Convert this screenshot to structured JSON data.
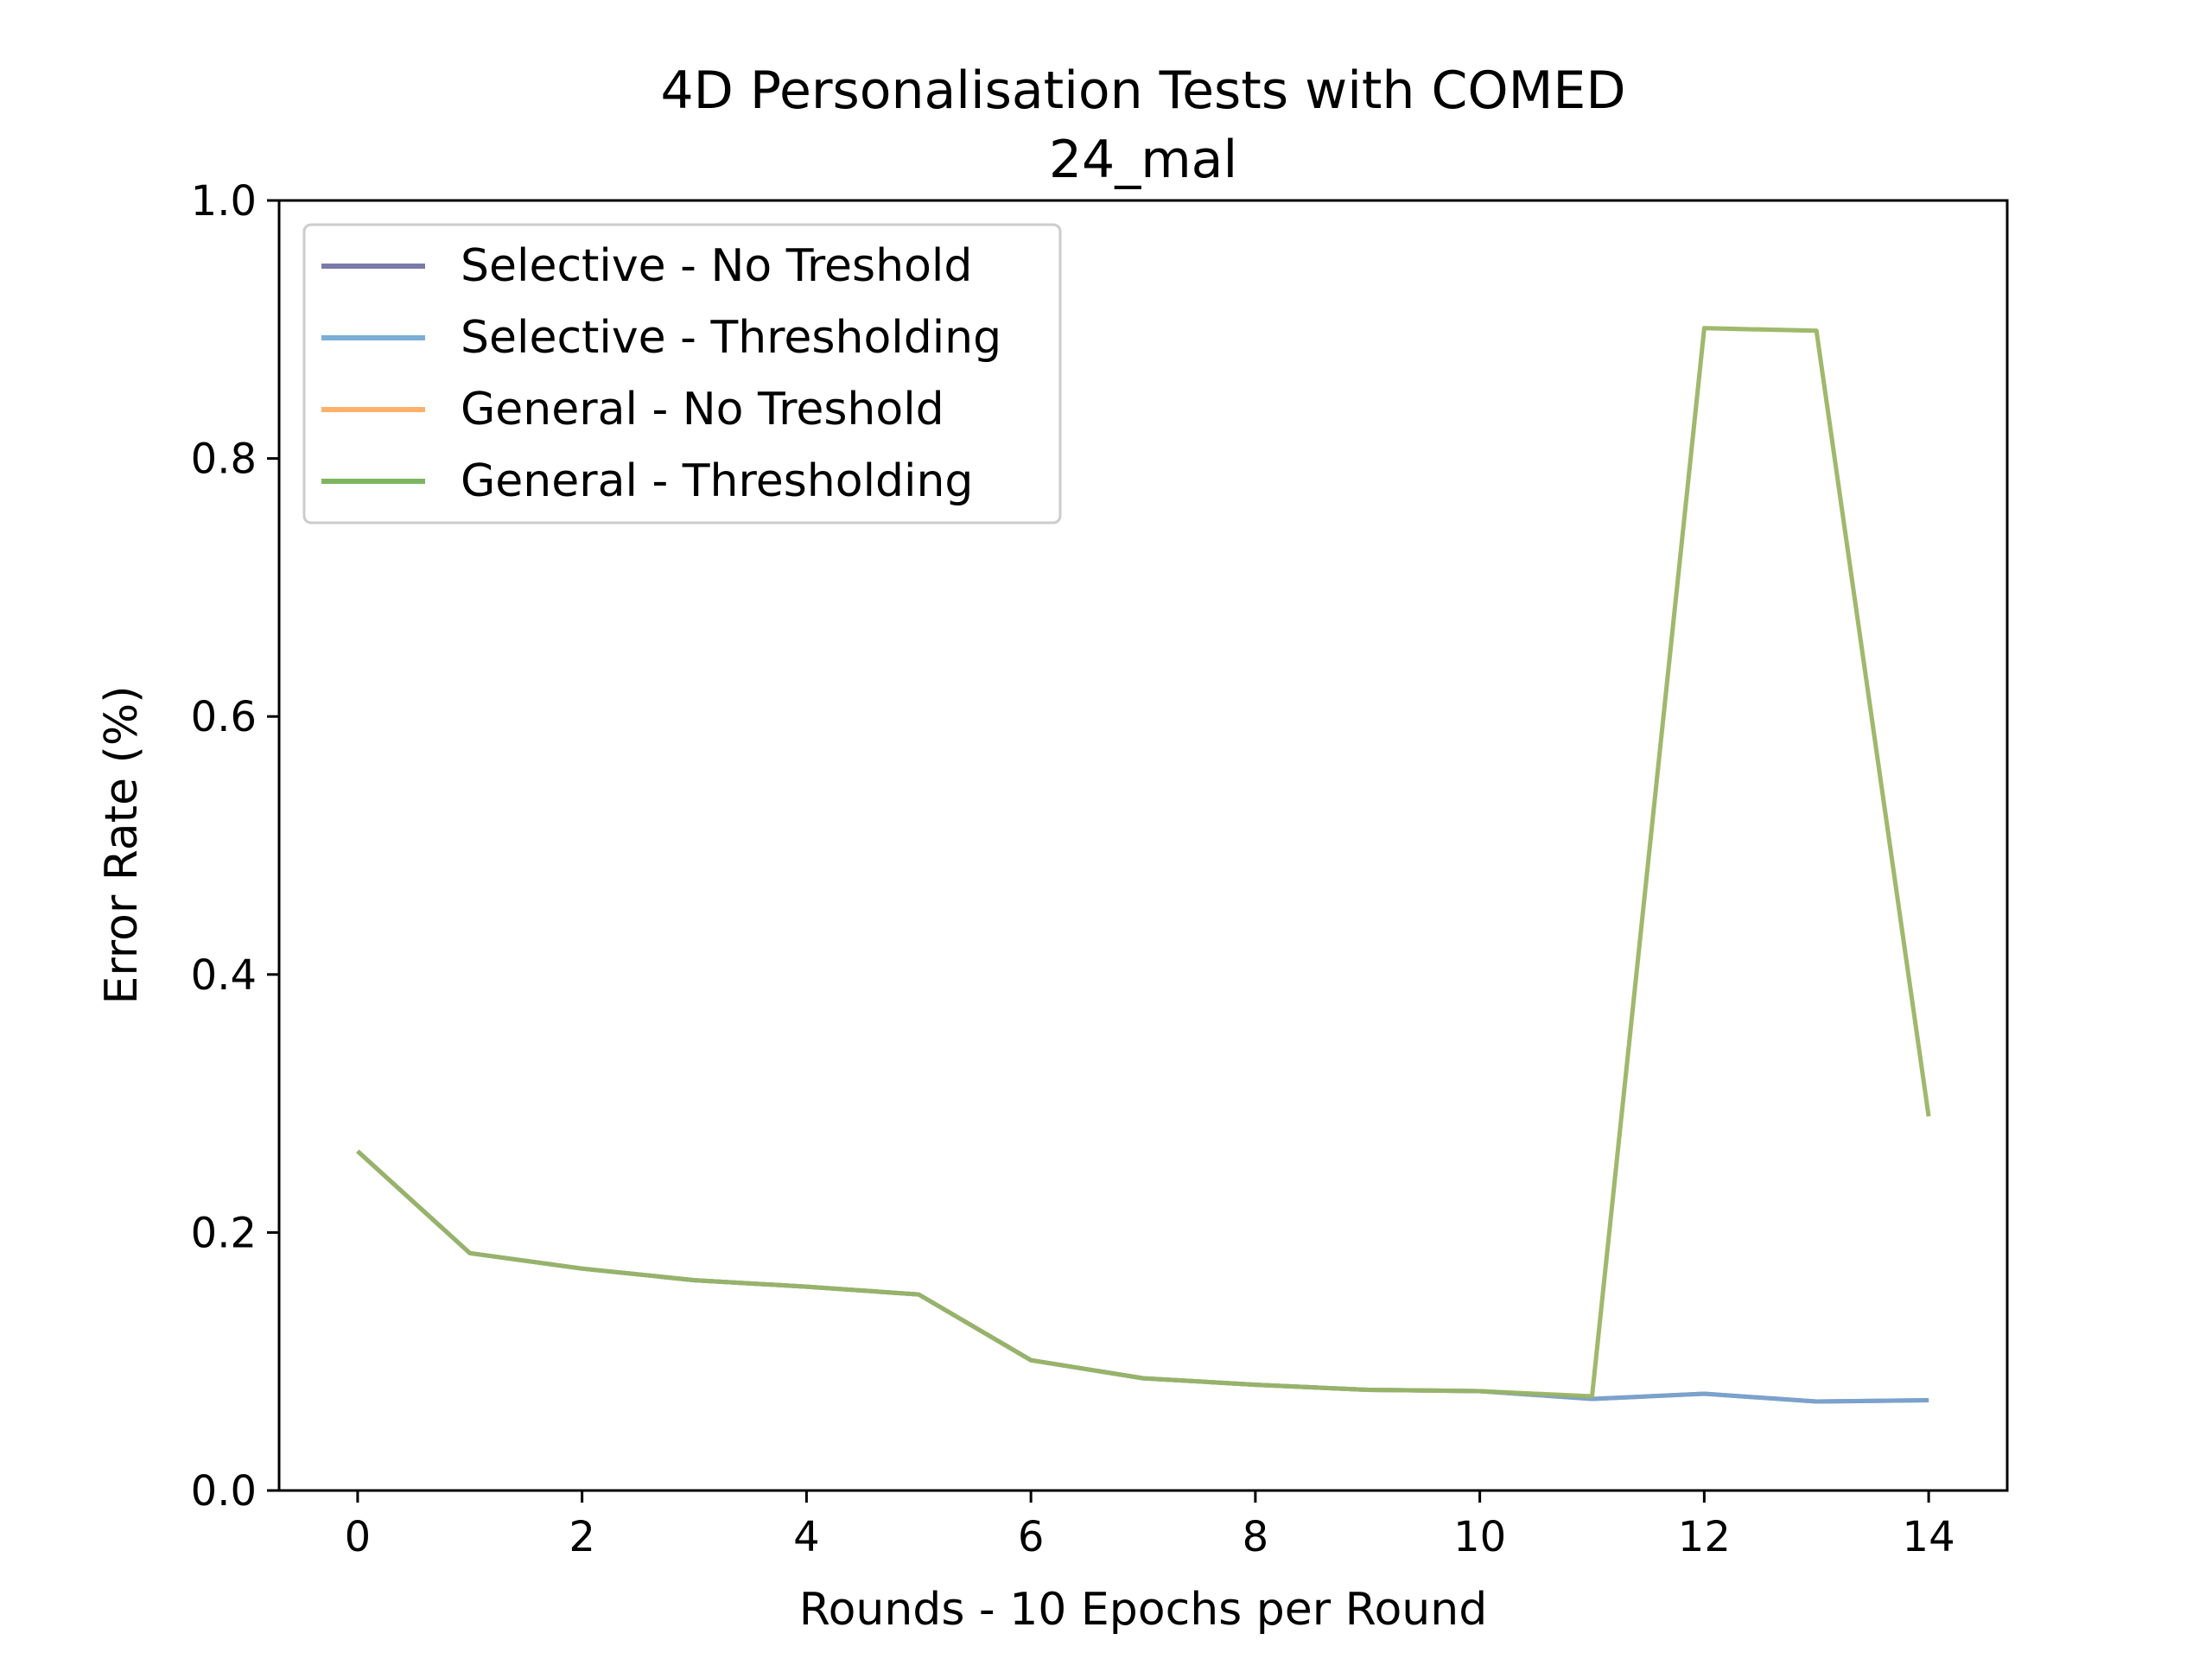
{
  "chart_data": {
    "type": "line",
    "title": "4D Personalisation Tests with COMED",
    "subtitle": "24_mal",
    "xlabel": "Rounds - 10 Epochs per Round",
    "ylabel": "Error Rate (%)",
    "xlim": [
      -0.7,
      14.7
    ],
    "ylim": [
      0.0,
      1.0
    ],
    "x_ticks": [
      0,
      2,
      4,
      6,
      8,
      10,
      12,
      14
    ],
    "x_tick_labels": [
      "0",
      "2",
      "4",
      "6",
      "8",
      "10",
      "12",
      "14"
    ],
    "y_ticks": [
      0.0,
      0.2,
      0.4,
      0.6,
      0.8,
      1.0
    ],
    "y_tick_labels": [
      "0.0",
      "0.2",
      "0.4",
      "0.6",
      "0.8",
      "1.0"
    ],
    "grid": false,
    "legend_position": "top-left",
    "x": [
      0,
      1,
      2,
      3,
      4,
      5,
      6,
      7,
      8,
      9,
      10,
      11,
      12,
      13,
      14
    ],
    "series": [
      {
        "name": "Selective - No Treshold",
        "color": "#7a7aaa",
        "values": [
          0.263,
          0.184,
          0.172,
          0.163,
          0.158,
          0.152,
          0.101,
          0.087,
          0.082,
          0.078,
          0.077,
          0.071,
          0.075,
          0.069,
          0.07
        ]
      },
      {
        "name": "Selective - Thresholding",
        "color": "#7aaed6",
        "values": [
          0.263,
          0.184,
          0.172,
          0.163,
          0.158,
          0.152,
          0.101,
          0.087,
          0.082,
          0.078,
          0.077,
          0.071,
          0.075,
          0.069,
          0.07
        ]
      },
      {
        "name": "General - No Treshold",
        "color": "#ffb06a",
        "values": [
          0.263,
          0.184,
          0.172,
          0.163,
          0.158,
          0.152,
          0.101,
          0.087,
          0.082,
          0.078,
          0.077,
          0.073,
          0.901,
          0.899,
          0.29
        ]
      },
      {
        "name": "General - Thresholding",
        "color": "#7db561",
        "values": [
          0.263,
          0.184,
          0.172,
          0.163,
          0.158,
          0.152,
          0.101,
          0.087,
          0.082,
          0.078,
          0.077,
          0.073,
          0.901,
          0.899,
          0.29
        ]
      }
    ],
    "overlay_colors": {
      "selective_combined": "#4170ac",
      "general_combined": "#6f9a43"
    }
  }
}
